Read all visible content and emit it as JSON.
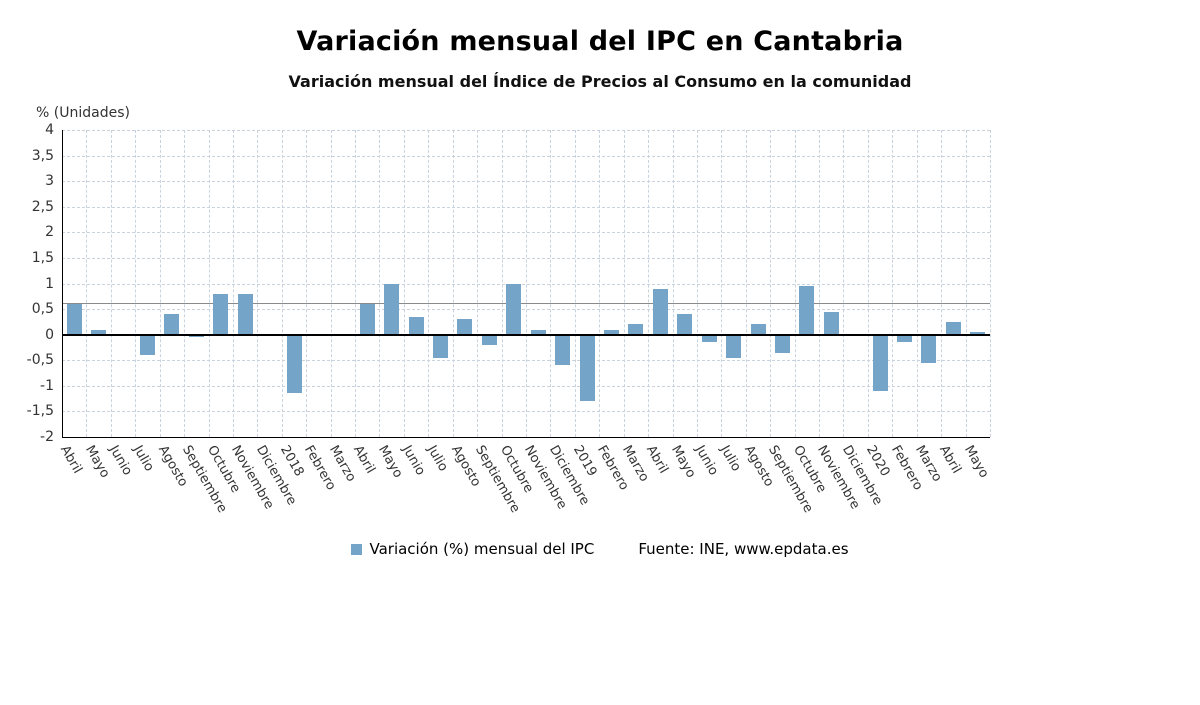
{
  "chart_data": {
    "type": "bar",
    "title": "Variación mensual del IPC en Cantabria",
    "subtitle": "Variación mensual del Índice de Precios al Consumo en la comunidad",
    "unit_label": "% (Unidades)",
    "categories": [
      "Abril",
      "Mayo",
      "Junio",
      "Julio",
      "Agosto",
      "Septiembre",
      "Octubre",
      "Noviembre",
      "Diciembre",
      "2018",
      "Febrero",
      "Marzo",
      "Abril",
      "Mayo",
      "Junio",
      "Julio",
      "Agosto",
      "Septiembre",
      "Octubre",
      "Noviembre",
      "Diciembre",
      "2019",
      "Febrero",
      "Marzo",
      "Abril",
      "Mayo",
      "Junio",
      "Julio",
      "Agosto",
      "Septiembre",
      "Octubre",
      "Noviembre",
      "Diciembre",
      "2020",
      "Febrero",
      "Marzo",
      "Abril",
      "Mayo"
    ],
    "series": [
      {
        "name": "Variación (%) mensual del IPC",
        "values": [
          0.6,
          0.1,
          0,
          -0.4,
          0.4,
          -0.05,
          0.8,
          0.8,
          0,
          -1.15,
          0,
          0,
          0.6,
          1.0,
          0.35,
          -0.45,
          0.3,
          -0.2,
          1.0,
          0.1,
          -0.6,
          -1.3,
          0.1,
          0.2,
          0.9,
          0.4,
          -0.15,
          -0.45,
          0.2,
          -0.35,
          0.95,
          0.45,
          0,
          -1.1,
          -0.15,
          -0.55,
          0.25,
          0.05
        ]
      }
    ],
    "xlabel": "",
    "ylabel": "% (Unidades)",
    "ylim": [
      -2,
      4
    ],
    "ytick_step": 0.5,
    "y_tick_labels": [
      "4",
      "3,5",
      "3",
      "2,5",
      "2",
      "1,5",
      "1",
      "0,5",
      "0",
      "-0,5",
      "-1",
      "-1,5",
      "-2"
    ],
    "reference_line_value": 0.62,
    "grid": true,
    "legend_position": "bottom",
    "bar_color": "#74a5c8",
    "grid_color": "#c9d3de",
    "legend_label": "Variación (%) mensual del IPC",
    "source": "Fuente: INE, www.epdata.es"
  }
}
